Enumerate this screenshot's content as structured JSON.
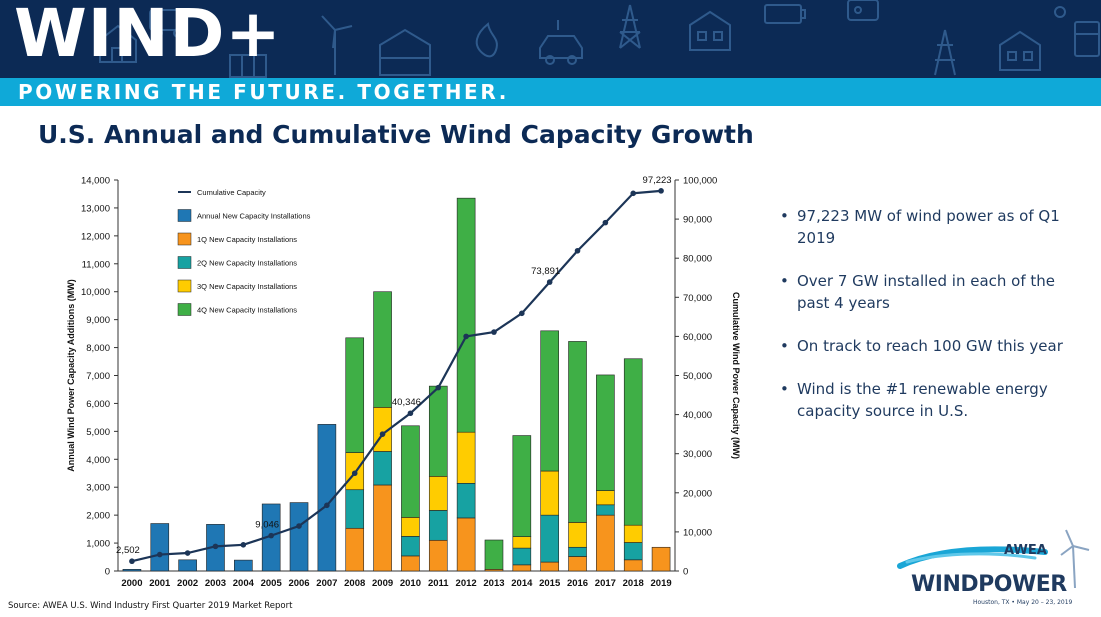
{
  "header": {
    "brand": "WIND+",
    "tagline": "POWERING THE FUTURE. TOGETHER."
  },
  "slide_title": "U.S. Annual and Cumulative Wind Capacity Growth",
  "bullets": [
    "97,223 MW of wind power as of Q1 2019",
    "Over 7 GW installed in each of the past 4 years",
    "On track to reach 100 GW this year",
    "Wind is the #1 renewable energy capacity source in U.S."
  ],
  "source": "Source: AWEA U.S. Wind Industry First Quarter 2019 Market Report",
  "logo": {
    "awea": "AWEA",
    "windpower": "WINDPOWER",
    "event": "Houston, TX • May 20 – 23, 2019"
  },
  "colors": {
    "banner": "#0c2a55",
    "tagline_bar": "#0fa9d8",
    "title": "#0c2a55",
    "annual": "#1f77b4",
    "q1": "#f7941d",
    "q2": "#17a2a2",
    "q3": "#ffcc00",
    "q4": "#3faf46",
    "cumulative": "#1c3557"
  },
  "chart_data": {
    "type": "bar",
    "stacked": true,
    "categories": [
      "2000",
      "2001",
      "2002",
      "2003",
      "2004",
      "2005",
      "2006",
      "2007",
      "2008",
      "2009",
      "2010",
      "2011",
      "2012",
      "2013",
      "2014",
      "2015",
      "2016",
      "2017",
      "2018",
      "2019"
    ],
    "series": [
      {
        "name": "Annual New Capacity Installations",
        "axis": "left",
        "values": [
          60,
          1700,
          400,
          1670,
          390,
          2400,
          2450,
          5250,
          null,
          null,
          null,
          null,
          null,
          null,
          null,
          null,
          null,
          null,
          null,
          null
        ]
      },
      {
        "name": "1Q New Capacity Installations",
        "axis": "left",
        "values": [
          null,
          null,
          null,
          null,
          null,
          null,
          null,
          null,
          1530,
          3080,
          540,
          1100,
          1900,
          60,
          220,
          320,
          520,
          2000,
          400,
          850
        ]
      },
      {
        "name": "2Q New Capacity Installations",
        "axis": "left",
        "values": [
          null,
          null,
          null,
          null,
          null,
          null,
          null,
          null,
          1380,
          1200,
          700,
          1070,
          1240,
          0,
          600,
          1680,
          330,
          370,
          620,
          null
        ]
      },
      {
        "name": "3Q New Capacity Installations",
        "axis": "left",
        "values": [
          null,
          null,
          null,
          null,
          null,
          null,
          null,
          null,
          1330,
          1580,
          680,
          1220,
          1830,
          0,
          410,
          1580,
          890,
          510,
          620,
          null
        ]
      },
      {
        "name": "4Q New Capacity Installations",
        "axis": "left",
        "values": [
          null,
          null,
          null,
          null,
          null,
          null,
          null,
          null,
          4110,
          4140,
          3280,
          3230,
          8380,
          1050,
          3620,
          5020,
          6480,
          4140,
          5960,
          null
        ]
      },
      {
        "name": "Cumulative Capacity",
        "type": "line",
        "axis": "right",
        "values": [
          2502,
          4200,
          4600,
          6300,
          6700,
          9046,
          11500,
          16800,
          25000,
          35000,
          40346,
          46900,
          60000,
          61100,
          65900,
          73891,
          81900,
          89100,
          96600,
          97223
        ]
      }
    ],
    "data_labels": [
      {
        "series": "Cumulative Capacity",
        "category": "2000",
        "text": "2,502"
      },
      {
        "series": "Cumulative Capacity",
        "category": "2005",
        "text": "9,046"
      },
      {
        "series": "Cumulative Capacity",
        "category": "2010",
        "text": "40,346"
      },
      {
        "series": "Cumulative Capacity",
        "category": "2015",
        "text": "73,891"
      },
      {
        "series": "Cumulative Capacity",
        "category": "2019",
        "text": "97,223"
      }
    ],
    "ylabel": "Annual Wind Power Capacity Additions (MW)",
    "y2label": "Cumulative Wind Power Capacity (MW)",
    "ylim": [
      0,
      14000
    ],
    "y2lim": [
      0,
      100000
    ],
    "yticks": [
      "0",
      "1,000",
      "2,000",
      "3,000",
      "4,000",
      "5,000",
      "6,000",
      "7,000",
      "8,000",
      "9,000",
      "10,000",
      "11,000",
      "12,000",
      "13,000",
      "14,000"
    ],
    "y2ticks": [
      "0",
      "10,000",
      "20,000",
      "30,000",
      "40,000",
      "50,000",
      "60,000",
      "70,000",
      "80,000",
      "90,000",
      "100,000"
    ],
    "grid": false,
    "legend": "top-left"
  }
}
